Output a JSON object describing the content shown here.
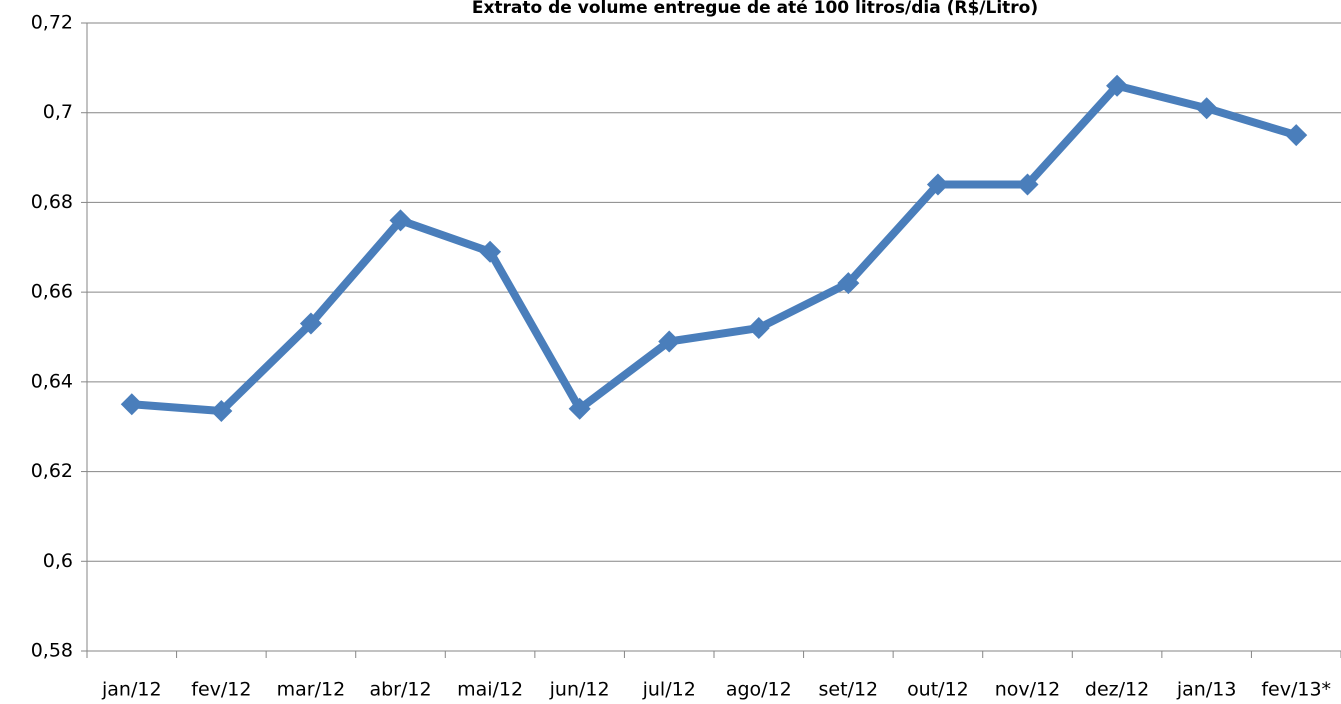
{
  "chart_data": {
    "type": "line",
    "title": "Extrato de volume entregue de até 100 litros/dia (R$/Litro)",
    "categories": [
      "jan/12",
      "fev/12",
      "mar/12",
      "abr/12",
      "mai/12",
      "jun/12",
      "jul/12",
      "ago/12",
      "set/12",
      "out/12",
      "nov/12",
      "dez/12",
      "jan/13",
      "fev/13*"
    ],
    "values": [
      0.635,
      0.6335,
      0.653,
      0.676,
      0.669,
      0.634,
      0.649,
      0.652,
      0.662,
      0.684,
      0.684,
      0.706,
      0.701,
      0.695
    ],
    "color": "#4a7ebb",
    "ylim": [
      0.58,
      0.72
    ],
    "yticks": [
      {
        "value": 0.58,
        "label": "0,58"
      },
      {
        "value": 0.6,
        "label": "0,6"
      },
      {
        "value": 0.62,
        "label": "0,62"
      },
      {
        "value": 0.64,
        "label": "0,64"
      },
      {
        "value": 0.66,
        "label": "0,66"
      },
      {
        "value": 0.68,
        "label": "0,68"
      },
      {
        "value": 0.7,
        "label": "0,7"
      },
      {
        "value": 0.72,
        "label": "0,72"
      }
    ],
    "grid": true
  }
}
